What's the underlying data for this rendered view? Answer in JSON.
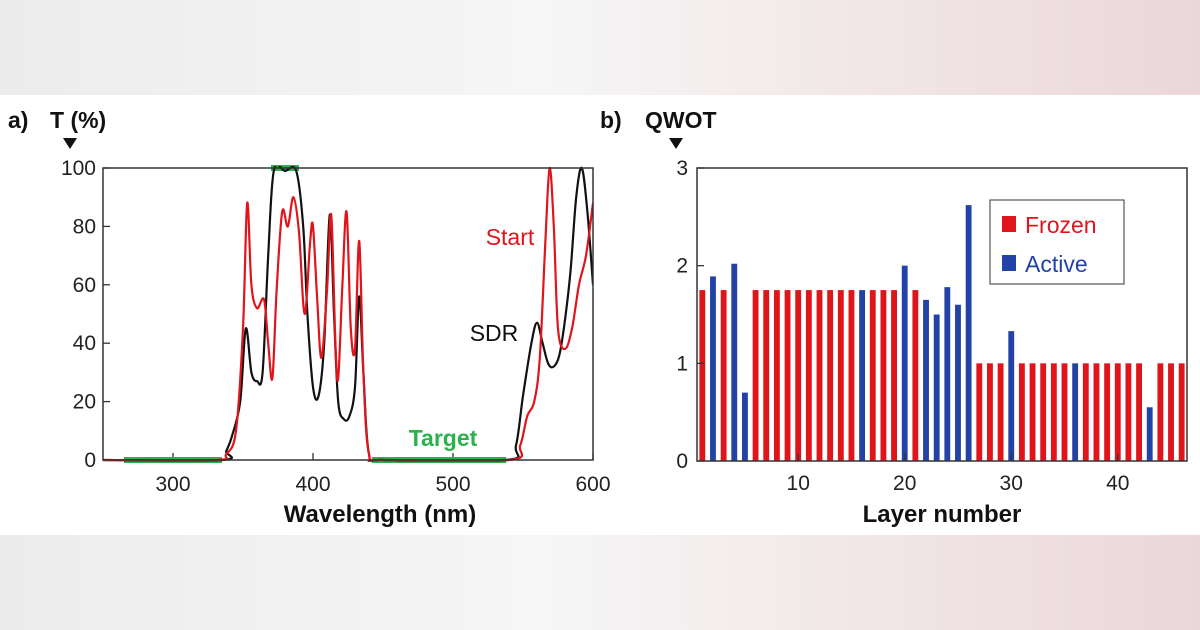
{
  "chart_data": [
    {
      "type": "line",
      "panel": "a)",
      "ylabel": "T (%)",
      "xlabel": "Wavelength (nm)",
      "xlim": [
        250,
        600
      ],
      "ylim": [
        0,
        100
      ],
      "xticks": [
        300,
        400,
        500,
        600
      ],
      "yticks": [
        0,
        20,
        40,
        60,
        80,
        100
      ],
      "grid": false,
      "series": [
        {
          "name": "Start",
          "color": "#e0141b",
          "x": [
            250,
            330,
            338,
            345,
            350,
            353,
            356,
            360,
            365,
            368,
            371,
            374,
            378,
            382,
            386,
            390,
            394,
            398,
            400,
            403,
            406,
            410,
            413,
            416,
            418,
            421,
            424,
            427,
            430,
            433,
            436,
            440,
            450,
            540,
            548,
            553,
            558,
            562,
            566,
            569,
            572,
            575,
            580,
            585,
            590,
            595,
            600
          ],
          "values": [
            0,
            0,
            2,
            10,
            45,
            88,
            60,
            52,
            55,
            40,
            28,
            58,
            85,
            80,
            90,
            78,
            50,
            75,
            80,
            55,
            35,
            58,
            84,
            40,
            28,
            60,
            85,
            45,
            38,
            75,
            30,
            2,
            0,
            0,
            5,
            15,
            20,
            35,
            75,
            100,
            80,
            45,
            38,
            45,
            60,
            70,
            88
          ]
        },
        {
          "name": "SDR",
          "color": "#111111",
          "x": [
            250,
            335,
            338,
            342,
            348,
            352,
            356,
            360,
            364,
            368,
            372,
            380,
            388,
            393,
            396,
            400,
            404,
            408,
            412,
            415,
            418,
            422,
            426,
            430,
            433,
            436,
            440,
            450,
            538,
            545,
            550,
            556,
            560,
            564,
            568,
            572,
            576,
            580,
            584,
            588,
            592,
            596,
            600
          ],
          "values": [
            0,
            0,
            3,
            8,
            20,
            45,
            30,
            27,
            30,
            70,
            99,
            99,
            99,
            80,
            50,
            25,
            22,
            40,
            84,
            50,
            20,
            14,
            15,
            25,
            56,
            30,
            2,
            0,
            0,
            5,
            22,
            40,
            47,
            40,
            33,
            32,
            36,
            48,
            65,
            90,
            100,
            85,
            60
          ]
        }
      ],
      "target_segments": [
        {
          "x": [
            265,
            335
          ],
          "y": 0
        },
        {
          "x": [
            370,
            390
          ],
          "y": 100
        },
        {
          "x": [
            442,
            538
          ],
          "y": 0
        }
      ],
      "target_color": "#2bb24c",
      "annotations": [
        {
          "text": "Start",
          "color": "#e0141b"
        },
        {
          "text": "SDR",
          "color": "#111111"
        },
        {
          "text": "Target",
          "color": "#2bb24c"
        }
      ]
    },
    {
      "type": "bar",
      "panel": "b)",
      "ylabel": "QWOT",
      "xlabel": "Layer number",
      "xlim": [
        0.5,
        46.5
      ],
      "ylim": [
        0,
        3
      ],
      "xticks": [
        10,
        20,
        30,
        40
      ],
      "yticks": [
        0,
        1,
        2,
        3
      ],
      "grid": false,
      "legend_position": "top-right",
      "legend": [
        {
          "name": "Frozen",
          "color": "#e0141b"
        },
        {
          "name": "Active",
          "color": "#2342a6"
        }
      ],
      "layers": [
        1,
        2,
        3,
        4,
        5,
        6,
        7,
        8,
        9,
        10,
        11,
        12,
        13,
        14,
        15,
        16,
        17,
        18,
        19,
        20,
        21,
        22,
        23,
        24,
        25,
        26,
        27,
        28,
        29,
        30,
        31,
        32,
        33,
        34,
        35,
        36,
        37,
        38,
        39,
        40,
        41,
        42,
        43,
        44,
        45,
        46
      ],
      "values": [
        1.75,
        1.89,
        1.75,
        2.02,
        0.7,
        1.75,
        1.75,
        1.75,
        1.75,
        1.75,
        1.75,
        1.75,
        1.75,
        1.75,
        1.75,
        1.75,
        1.75,
        1.75,
        1.75,
        2.0,
        1.75,
        1.65,
        1.5,
        1.78,
        1.6,
        2.62,
        1.0,
        1.0,
        1.0,
        1.33,
        1.0,
        1.0,
        1.0,
        1.0,
        1.0,
        1.0,
        1.0,
        1.0,
        1.0,
        1.0,
        1.0,
        1.0,
        0.55,
        1.0,
        1.0,
        1.0
      ],
      "status": [
        "F",
        "A",
        "F",
        "A",
        "A",
        "F",
        "F",
        "F",
        "F",
        "F",
        "F",
        "F",
        "F",
        "F",
        "F",
        "A",
        "F",
        "F",
        "F",
        "A",
        "F",
        "A",
        "A",
        "A",
        "A",
        "A",
        "F",
        "F",
        "F",
        "A",
        "F",
        "F",
        "F",
        "F",
        "F",
        "A",
        "F",
        "F",
        "F",
        "F",
        "F",
        "F",
        "A",
        "F",
        "F",
        "F"
      ]
    }
  ]
}
